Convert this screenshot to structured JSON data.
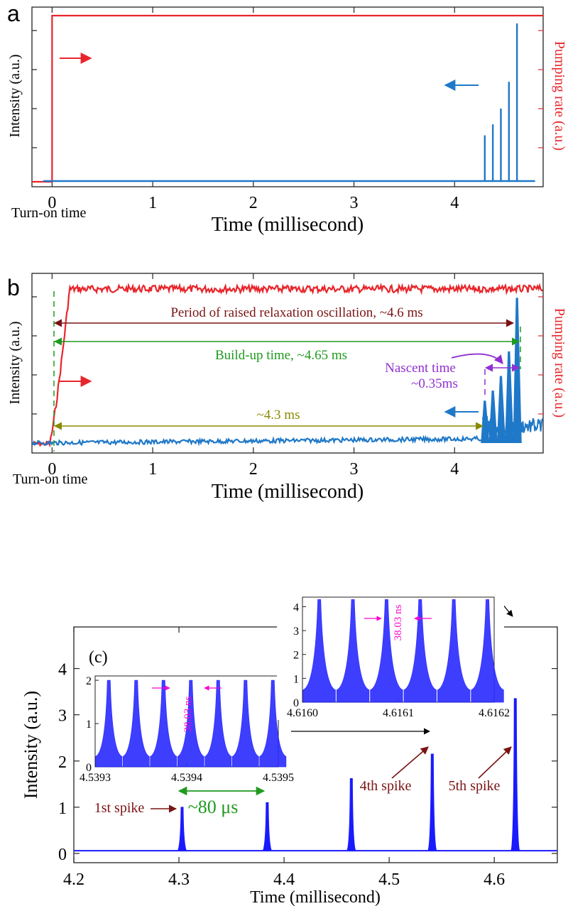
{
  "chart_data": [
    {
      "panel": "a",
      "type": "line",
      "xlabel": "Time (millisecond)",
      "ylabel_left": "Intensity (a.u.)",
      "ylabel_right": "Pumping rate (a.u.)",
      "x_ticks": [
        "0",
        "1",
        "2",
        "3",
        "4"
      ],
      "xlim": [
        -0.2,
        4.88
      ],
      "turn_on_label": "Turn-on time",
      "grid": false,
      "series": [
        {
          "color": "#e8252b",
          "x": [
            -0.2,
            0,
            0,
            4.88
          ],
          "y": [
            0,
            0,
            1,
            1
          ]
        },
        {
          "color": "#1f78c8",
          "x": [
            -0.2,
            4.8
          ],
          "y": [
            0,
            0
          ]
        }
      ],
      "spikes": {
        "color": "#1f78c8",
        "x": [
          4.3,
          4.38,
          4.46,
          4.54,
          4.62
        ],
        "height": [
          0.29,
          0.36,
          0.46,
          0.63,
          1.0
        ]
      }
    },
    {
      "panel": "b",
      "type": "line",
      "xlabel": "Time (millisecond)",
      "ylabel_left": "Intensity (a.u.)",
      "ylabel_right": "Pumping rate (a.u.)",
      "x_ticks": [
        "0",
        "1",
        "2",
        "3",
        "4"
      ],
      "xlim": [
        -0.2,
        4.88
      ],
      "turn_on_label": "Turn-on time",
      "grid": false,
      "annotations": {
        "relaxation": "Period of raised relaxation oscillation, ~4.6 ms",
        "buildup": "Build-up time, ~4.65 ms",
        "nascent_1": "Nascent time",
        "nascent_2": "~0.35ms",
        "delay": "~4.3 ms"
      },
      "spikes": {
        "color": "#1f78c8",
        "x": [
          4.3,
          4.38,
          4.46,
          4.54,
          4.62
        ],
        "height": [
          0.29,
          0.36,
          0.46,
          0.63,
          1.0
        ]
      }
    },
    {
      "panel": "c",
      "type": "line",
      "label": "(c)",
      "xlabel": "Time (millisecond)",
      "ylabel": "Intensity (a.u.)",
      "x_ticks": [
        "4.2",
        "4.3",
        "4.4",
        "4.5",
        "4.6"
      ],
      "y_ticks": [
        "0",
        "1",
        "2",
        "3",
        "4"
      ],
      "xlim": [
        4.2,
        4.66
      ],
      "ylim": [
        -0.2,
        4.9
      ],
      "grid": false,
      "series": [
        {
          "color": "#1a1aff",
          "x": [
            4.303,
            4.384,
            4.464,
            4.541,
            4.62
          ],
          "y": [
            1.0,
            1.1,
            1.62,
            2.15,
            3.35
          ]
        }
      ],
      "labels": {
        "spike1": "1st spike",
        "spike4": "4th spike",
        "spike5": "5th spike",
        "interval": "~80 μs"
      },
      "inset_left": {
        "x_ticks": [
          "4.5393",
          "4.5394",
          "4.5395"
        ],
        "y_ticks": [
          "0",
          "1",
          "2"
        ],
        "peak": 2.0,
        "period_label": "38.03 ns"
      },
      "inset_right": {
        "x_ticks": [
          "4.6160",
          "4.6161",
          "4.6162"
        ],
        "y_ticks": [
          "0",
          "1",
          "2",
          "3",
          "4"
        ],
        "peak": 4.3,
        "period_label": "38.03 ns"
      }
    }
  ]
}
